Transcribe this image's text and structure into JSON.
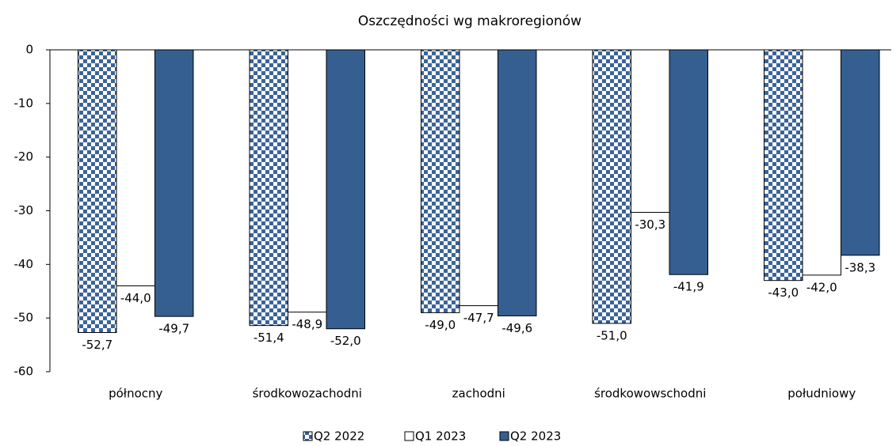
{
  "chart_data": {
    "type": "bar",
    "title": "Oszczędności wg makroregionów",
    "categories": [
      "północny",
      "środkowozachodni",
      "zachodni",
      "środkowowschodni",
      "południowy"
    ],
    "series": [
      {
        "name": "Q2 2022",
        "color": "#3b6499",
        "pattern": "checker",
        "values": [
          -52.7,
          -51.4,
          -49.0,
          -51.0,
          -43.0
        ],
        "value_labels": [
          "-52,7",
          "-51,4",
          "-49,0",
          "-51,0",
          "-43,0"
        ]
      },
      {
        "name": "Q1 2023",
        "color": "#ffffff",
        "values": [
          -44.0,
          -48.9,
          -47.7,
          -30.3,
          -42.0
        ],
        "value_labels": [
          "-44,0",
          "-48,9",
          "-47,7",
          "-30,3",
          "-42,0"
        ]
      },
      {
        "name": "Q2 2023",
        "color": "#355f91",
        "values": [
          -49.7,
          -52.0,
          -49.6,
          -41.9,
          -38.3
        ],
        "value_labels": [
          "-49,7",
          "-52,0",
          "-49,6",
          "-41,9",
          "-38,3"
        ]
      }
    ],
    "ylim": [
      -60,
      0
    ],
    "yticks": [
      0,
      -10,
      -20,
      -30,
      -40,
      -50,
      -60
    ]
  }
}
